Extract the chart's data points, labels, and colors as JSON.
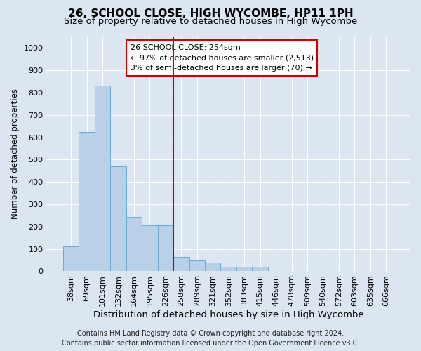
{
  "title": "26, SCHOOL CLOSE, HIGH WYCOMBE, HP11 1PH",
  "subtitle": "Size of property relative to detached houses in High Wycombe",
  "xlabel": "Distribution of detached houses by size in High Wycombe",
  "ylabel": "Number of detached properties",
  "bar_labels": [
    "38sqm",
    "69sqm",
    "101sqm",
    "132sqm",
    "164sqm",
    "195sqm",
    "226sqm",
    "258sqm",
    "289sqm",
    "321sqm",
    "352sqm",
    "383sqm",
    "415sqm",
    "446sqm",
    "478sqm",
    "509sqm",
    "540sqm",
    "572sqm",
    "603sqm",
    "635sqm",
    "666sqm"
  ],
  "bar_values": [
    110,
    625,
    830,
    470,
    245,
    205,
    205,
    65,
    50,
    40,
    20,
    20,
    20,
    0,
    0,
    0,
    0,
    0,
    0,
    0,
    0
  ],
  "bar_color": "#b8d0e8",
  "bar_edge_color": "#6aaad4",
  "background_color": "#dce6f1",
  "plot_bg_color": "#dce6f1",
  "grid_color": "#ffffff",
  "vline_index": 7,
  "vline_color": "#cc0000",
  "annotation_title": "26 SCHOOL CLOSE: 254sqm",
  "annotation_line1": "← 97% of detached houses are smaller (2,513)",
  "annotation_line2": "3% of semi-detached houses are larger (70) →",
  "annotation_box_facecolor": "#ffffff",
  "annotation_box_edgecolor": "#cc0000",
  "ylim": [
    0,
    1050
  ],
  "yticks": [
    0,
    100,
    200,
    300,
    400,
    500,
    600,
    700,
    800,
    900,
    1000
  ],
  "footer1": "Contains HM Land Registry data © Crown copyright and database right 2024.",
  "footer2": "Contains public sector information licensed under the Open Government Licence v3.0.",
  "title_fontsize": 11,
  "subtitle_fontsize": 9.5,
  "xlabel_fontsize": 9.5,
  "ylabel_fontsize": 8.5,
  "tick_fontsize": 8,
  "annotation_fontsize": 8,
  "footer_fontsize": 7
}
